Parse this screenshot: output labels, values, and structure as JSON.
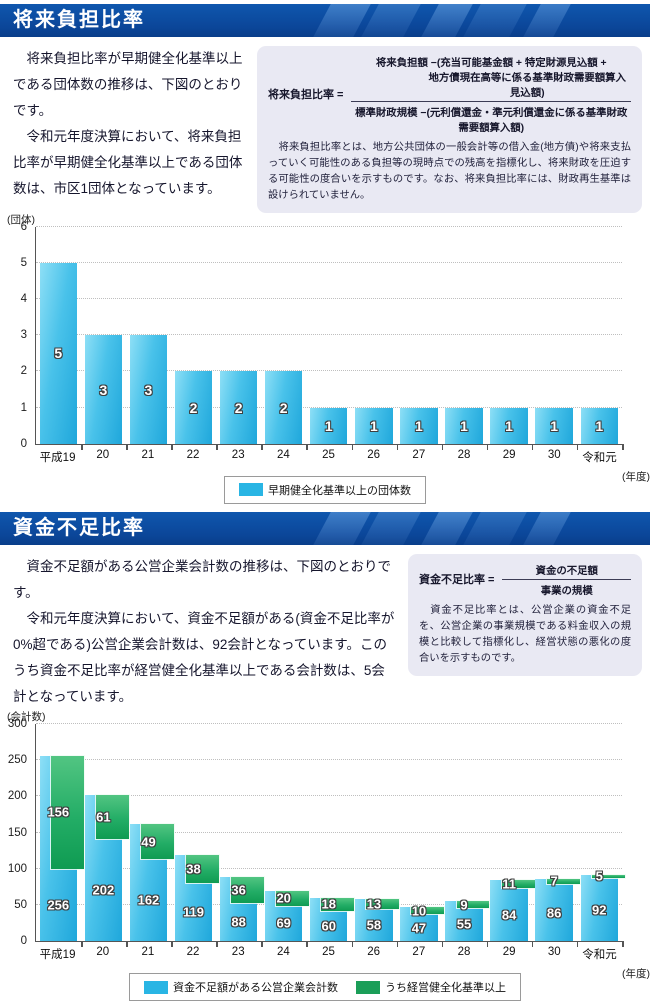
{
  "colors": {
    "header_blue": "#0b4699",
    "bar_cyan": "#29b5e4",
    "bar_green": "#1b9e58"
  },
  "sections": [
    {
      "title": "将来負担比率",
      "intro": [
        "　将来負担比率が早期健全化基準以上である団体数の推移は、下図のとおりです。",
        "　令和元年度決算において、将来負担比率が早期健全化基準以上である団体数は、市区1団体となっています。"
      ],
      "formula": {
        "label": "将来負担比率 =",
        "numerator_line1": "将来負担額 −(充当可能基金額 + 特定財源見込額 +",
        "numerator_line2": "地方債現在高等に係る基準財政需要額算入見込額)",
        "denominator": "標準財政規模 −(元利償還金・準元利償還金に係る基準財政需要額算入額)",
        "note": "　将来負担比率とは、地方公共団体の一般会計等の借入金(地方債)や将来支払っていく可能性のある負担等の現時点での残高を指標化し、将来財政を圧迫する可能性の度合いを示すものです。なお、将来負担比率には、財政再生基準は設けられていません。"
      }
    },
    {
      "title": "資金不足比率",
      "intro": [
        "　資金不足額がある公営企業会計数の推移は、下図のとおりです。",
        "　令和元年度決算において、資金不足額がある(資金不足比率が0%超である)公営企業会計数は、92会計となっています。このうち資金不足比率が経営健全化基準以上である会計数は、5会計となっています。"
      ],
      "formula": {
        "label": "資金不足比率 =",
        "numerator": "資金の不足額",
        "denominator": "事業の規模",
        "note": "　資金不足比率とは、公営企業の資金不足を、公営企業の事業規模である料金収入の規模と比較して指標化し、経営状態の悪化の度合いを示すものです。"
      }
    }
  ],
  "chart_data": [
    {
      "type": "bar",
      "categories": [
        "平成19",
        "20",
        "21",
        "22",
        "23",
        "24",
        "25",
        "26",
        "27",
        "28",
        "29",
        "30",
        "令和元"
      ],
      "values": [
        5,
        3,
        3,
        2,
        2,
        2,
        1,
        1,
        1,
        1,
        1,
        1,
        1
      ],
      "ylabel": "(団体)",
      "xlabel": "(年度)",
      "ylim": [
        0,
        6
      ],
      "yticks": [
        0,
        1,
        2,
        3,
        4,
        5,
        6
      ],
      "grid": "horizontal-dotted",
      "legend_position": "bottom-center",
      "legend": [
        {
          "label": "早期健全化基準以上の団体数",
          "color": "#29b5e4"
        }
      ]
    },
    {
      "type": "bar",
      "categories": [
        "平成19",
        "20",
        "21",
        "22",
        "23",
        "24",
        "25",
        "26",
        "27",
        "28",
        "29",
        "30",
        "令和元"
      ],
      "series": [
        {
          "name": "資金不足額がある公営企業会計数",
          "color": "#29b5e4",
          "values": [
            256,
            202,
            162,
            119,
            88,
            69,
            60,
            58,
            47,
            55,
            84,
            86,
            92
          ]
        },
        {
          "name": "うち経営健全化基準以上",
          "color": "#1b9e58",
          "overlay_of_first": true,
          "values": [
            156,
            61,
            49,
            38,
            36,
            20,
            18,
            13,
            10,
            9,
            11,
            7,
            5
          ]
        }
      ],
      "ylabel": "(会計数)",
      "xlabel": "(年度)",
      "ylim": [
        0,
        300
      ],
      "yticks": [
        0,
        50,
        100,
        150,
        200,
        250,
        300
      ],
      "grid": "horizontal-dotted",
      "legend_position": "bottom-center",
      "legend": [
        {
          "label": "資金不足額がある公営企業会計数",
          "color": "#29b5e4"
        },
        {
          "label": "うち経営健全化基準以上",
          "color": "#1b9e58"
        }
      ]
    }
  ]
}
